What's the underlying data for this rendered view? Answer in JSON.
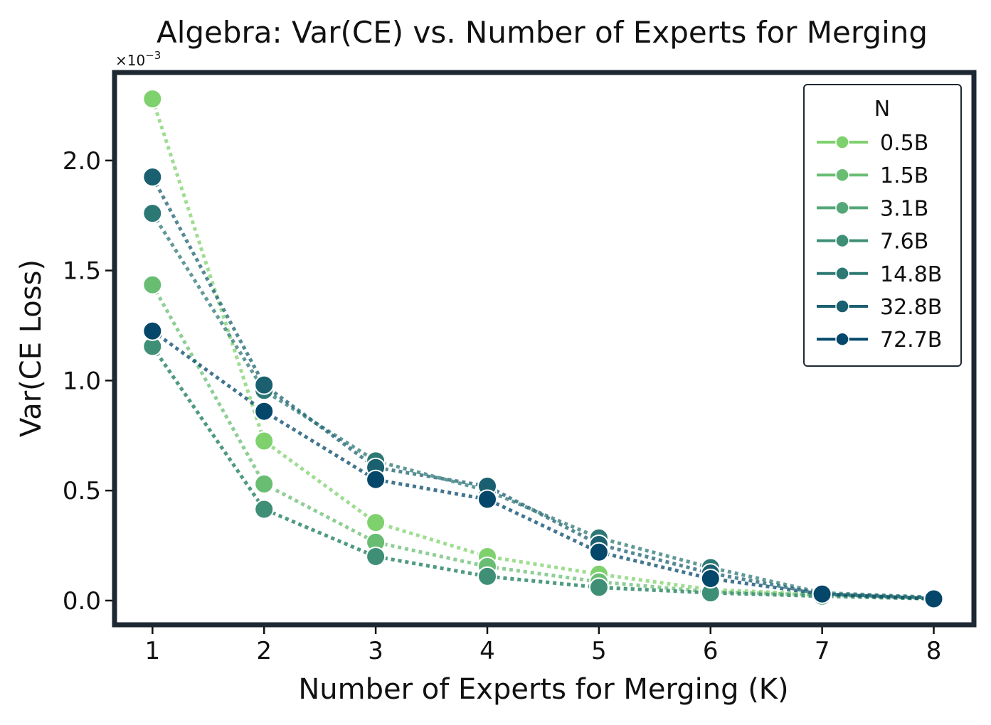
{
  "chart_data": {
    "type": "line",
    "title": "Algebra: Var(CE) vs. Number of Experts for Merging",
    "xlabel": "Number of Experts for Merging (K)",
    "ylabel": "Var(CE Loss)",
    "y_multiplier": "×10",
    "y_multiplier_exp": "−3",
    "x": [
      1,
      2,
      3,
      4,
      5,
      6,
      7,
      8
    ],
    "xlim": [
      0.66,
      8.36
    ],
    "ylim": [
      -0.11,
      2.4
    ],
    "x_ticks": [
      1,
      2,
      3,
      4,
      5,
      6,
      7,
      8
    ],
    "y_ticks": [
      0.0,
      0.5,
      1.0,
      1.5,
      2.0
    ],
    "y_tick_labels": [
      "0.0",
      "0.5",
      "1.0",
      "1.5",
      "2.0"
    ],
    "grid": false,
    "line_style": "dotted",
    "legend_title": "N",
    "legend_position": "top-right",
    "series": [
      {
        "name": "0.5B",
        "color": "#7fd16e",
        "values": [
          2.28,
          0.725,
          0.355,
          0.2,
          0.12,
          0.05,
          0.028,
          0.01
        ]
      },
      {
        "name": "1.5B",
        "color": "#68bd73",
        "values": [
          1.435,
          0.53,
          0.265,
          0.155,
          0.085,
          0.04,
          0.025,
          0.01
        ]
      },
      {
        "name": "3.1B",
        "color": "#55a678",
        "values": [
          1.155,
          0.415,
          0.2,
          0.11,
          0.06,
          0.035,
          0.02,
          0.008
        ]
      },
      {
        "name": "7.6B",
        "color": "#3f8f77",
        "values": [
          1.155,
          0.415,
          0.2,
          0.11,
          0.06,
          0.035,
          0.02,
          0.008
        ]
      },
      {
        "name": "14.8B",
        "color": "#2c7874",
        "values": [
          1.76,
          0.955,
          0.635,
          0.5,
          0.285,
          0.15,
          0.035,
          0.015
        ]
      },
      {
        "name": "32.8B",
        "color": "#1b6070",
        "values": [
          1.925,
          0.98,
          0.605,
          0.52,
          0.255,
          0.125,
          0.03,
          0.012
        ]
      },
      {
        "name": "72.7B",
        "color": "#04476a",
        "values": [
          1.225,
          0.86,
          0.55,
          0.46,
          0.22,
          0.1,
          0.03,
          0.008
        ]
      }
    ]
  }
}
